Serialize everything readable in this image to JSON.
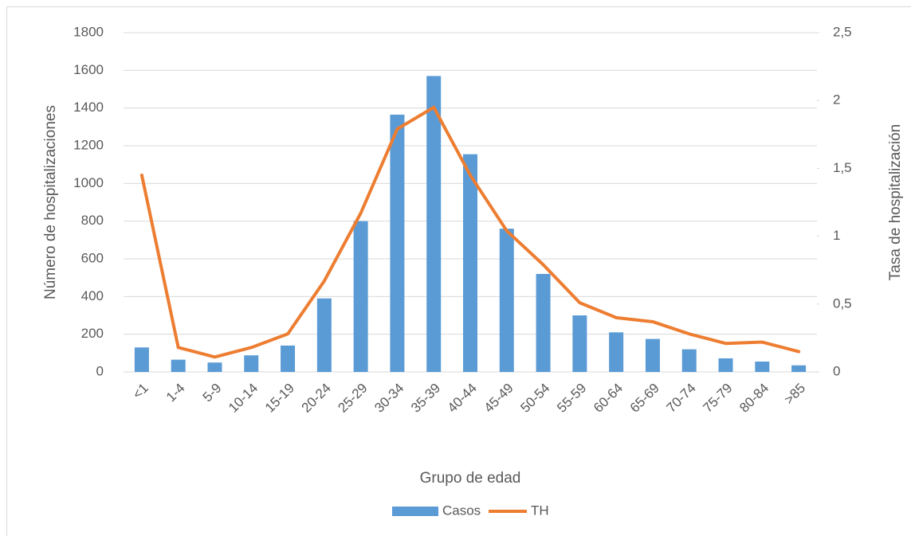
{
  "chart_data": {
    "type": "bar",
    "x_label": "Grupo de edad",
    "y_label": "Número de hospitalizaciones",
    "y2_label": "Tasa de hospitalización",
    "categories": [
      "<1",
      "1-4",
      "5-9",
      "10-14",
      "15-19",
      "20-24",
      "25-29",
      "30-34",
      "35-39",
      "40-44",
      "45-49",
      "50-54",
      "55-59",
      "60-64",
      "65-69",
      "70-74",
      "75-79",
      "80-84",
      ">85"
    ],
    "series": [
      {
        "name": "Casos",
        "type": "bar",
        "color": "#5b9bd5",
        "values": [
          130,
          65,
          50,
          88,
          140,
          390,
          800,
          1365,
          1570,
          1155,
          760,
          520,
          300,
          210,
          175,
          120,
          72,
          55,
          35
        ]
      },
      {
        "name": "TH",
        "type": "line",
        "axis": "y2",
        "color": "#ed7d31",
        "values": [
          1.45,
          0.18,
          0.11,
          0.18,
          0.28,
          0.67,
          1.17,
          1.79,
          1.95,
          1.45,
          1.04,
          0.79,
          0.51,
          0.4,
          0.37,
          0.28,
          0.21,
          0.22,
          0.15
        ]
      }
    ],
    "ylim": [
      0,
      1800
    ],
    "yticks": [
      0,
      200,
      400,
      600,
      800,
      1000,
      1200,
      1400,
      1600,
      1800
    ],
    "y2lim": [
      0,
      2.5
    ],
    "y2ticks": [
      0,
      {
        "value": 0.5,
        "label": "0,5"
      },
      1,
      {
        "value": 1.5,
        "label": "1,5"
      },
      2,
      {
        "value": 2.5,
        "label": "2,5"
      }
    ],
    "grid": true,
    "legend": "bottom"
  }
}
